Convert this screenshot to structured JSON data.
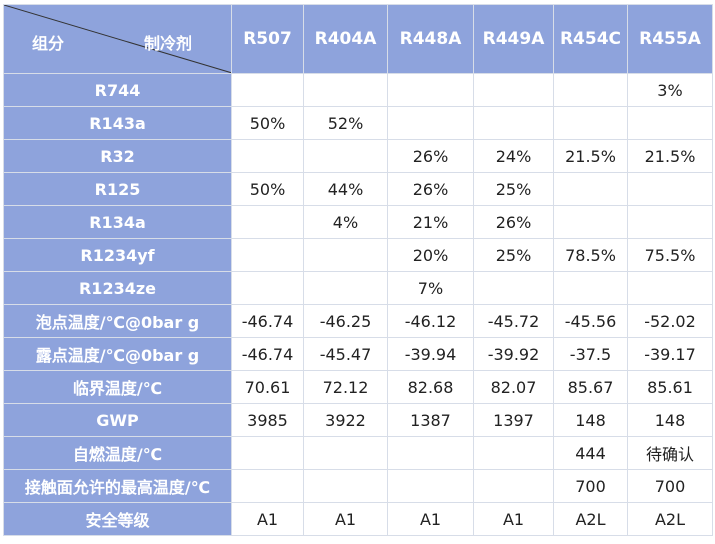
{
  "corner": {
    "left_label": "组分",
    "right_label": "制冷剂"
  },
  "refrigerants": [
    "R507",
    "R404A",
    "R448A",
    "R449A",
    "R454C",
    "R455A"
  ],
  "rows": [
    {
      "label": "R744",
      "values": [
        "",
        "",
        "",
        "",
        "",
        "3%"
      ]
    },
    {
      "label": "R143a",
      "values": [
        "50%",
        "52%",
        "",
        "",
        "",
        ""
      ]
    },
    {
      "label": "R32",
      "values": [
        "",
        "",
        "26%",
        "24%",
        "21.5%",
        "21.5%"
      ]
    },
    {
      "label": "R125",
      "values": [
        "50%",
        "44%",
        "26%",
        "25%",
        "",
        ""
      ]
    },
    {
      "label": "R134a",
      "values": [
        "",
        "4%",
        "21%",
        "26%",
        "",
        ""
      ]
    },
    {
      "label": "R1234yf",
      "values": [
        "",
        "",
        "20%",
        "25%",
        "78.5%",
        "75.5%"
      ]
    },
    {
      "label": "R1234ze",
      "values": [
        "",
        "",
        "7%",
        "",
        "",
        ""
      ]
    },
    {
      "label": "泡点温度/℃@0bar g",
      "values": [
        "-46.74",
        "-46.25",
        "-46.12",
        "-45.72",
        "-45.56",
        "-52.02"
      ]
    },
    {
      "label": "露点温度/℃@0bar g",
      "values": [
        "-46.74",
        "-45.47",
        "-39.94",
        "-39.92",
        "-37.5",
        "-39.17"
      ]
    },
    {
      "label": "临界温度/℃",
      "values": [
        "70.61",
        "72.12",
        "82.68",
        "82.07",
        "85.67",
        "85.61"
      ]
    },
    {
      "label": "GWP",
      "values": [
        "3985",
        "3922",
        "1387",
        "1397",
        "148",
        "148"
      ]
    },
    {
      "label": "自燃温度/℃",
      "values": [
        "",
        "",
        "",
        "",
        "444",
        "待确认"
      ]
    },
    {
      "label": "接触面允许的最高温度/℃",
      "values": [
        "",
        "",
        "",
        "",
        "700",
        "700"
      ]
    },
    {
      "label": "安全等级",
      "values": [
        "A1",
        "A1",
        "A1",
        "A1",
        "A2L",
        "A2L"
      ]
    }
  ],
  "colors": {
    "header_bg": "#8ea3dc",
    "header_text": "#ffffff",
    "grid_line": "#d7dde8"
  }
}
